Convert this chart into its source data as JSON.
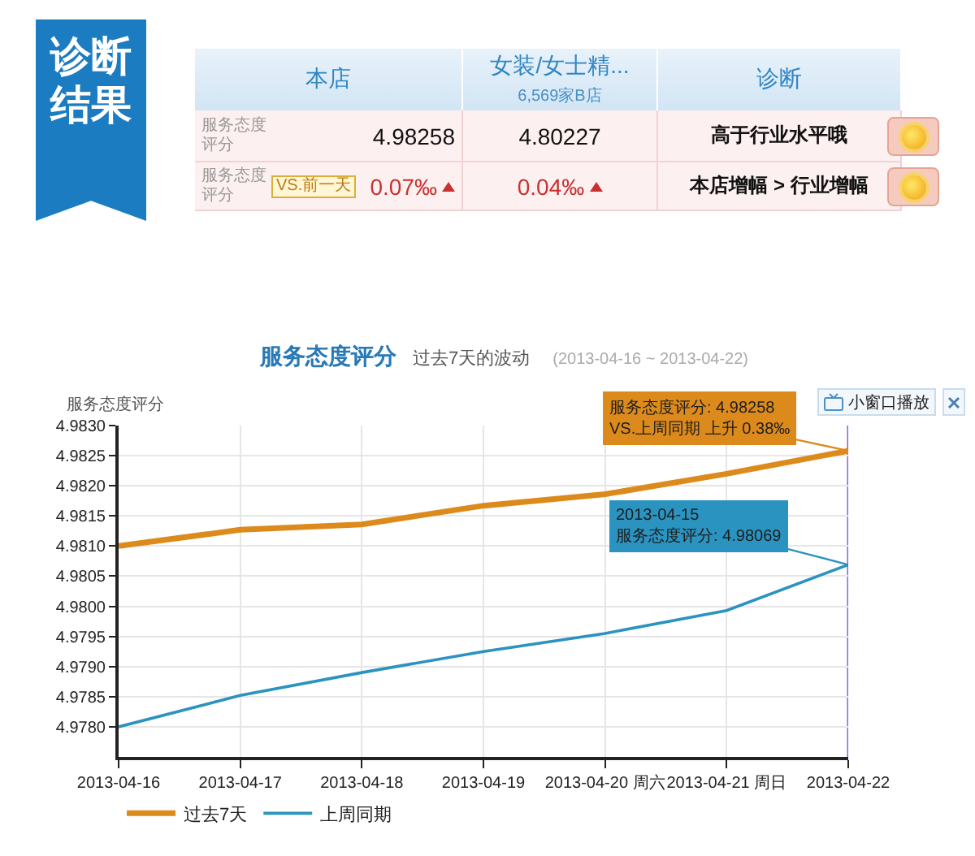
{
  "chart_data": [
    {
      "type": "other",
      "title": "诊断结果",
      "categories": [
        "本店",
        "女装/女士精...",
        "诊断"
      ],
      "y_categories": [
        "服务态度评分",
        "服务态度评分"
      ],
      "cell_labels": [
        [
          "4.98258",
          "4.80227",
          "高于行业水平哦"
        ],
        [
          "0.07‰",
          "0.04‰",
          "本店增幅 > 行业增幅"
        ]
      ],
      "annotations": [
        "6,569家B店",
        "VS.前一天"
      ]
    },
    {
      "type": "line",
      "title": "服务态度评分",
      "subtitle": "过去7天的波动",
      "ylabel": "服务态度评分",
      "annotations": [
        "(2013-04-16 ~ 2013-04-22)",
        "小窗口播放",
        {
          "text": "服务态度评分: 4.98258\nVS.上周同期 上升 0.38‰",
          "x": "2013-04-22",
          "y": 4.98258
        },
        {
          "text": "2013-04-15\n服务态度评分: 4.98069",
          "x": "2013-04-22",
          "y": 4.98069
        }
      ],
      "categories": [
        "2013-04-16",
        "2013-04-17",
        "2013-04-18",
        "2013-04-19",
        "2013-04-20 周六",
        "2013-04-21 周日",
        "2013-04-22"
      ],
      "series": [
        {
          "name": "过去7天",
          "color": "#dd8a1c",
          "values": [
            4.981,
            4.98127,
            4.98136,
            4.98167,
            4.98186,
            4.9822,
            4.98258
          ]
        },
        {
          "name": "上周同期",
          "color": "#2a93bf",
          "values": [
            4.978,
            4.97852,
            4.9789,
            4.97925,
            4.97955,
            4.97993,
            4.98069
          ]
        }
      ],
      "ylim": [
        4.9775,
        4.983
      ],
      "yticks": [
        {
          "value": 4.978,
          "label": "4.9780"
        },
        4.9785,
        {
          "value": 4.979,
          "label": "4.9790"
        },
        4.9795,
        {
          "value": 4.98,
          "label": "4.9800"
        },
        4.9805,
        {
          "value": 4.981,
          "label": "4.9810"
        },
        4.9815,
        {
          "value": 4.982,
          "label": "4.9820"
        },
        4.9825,
        {
          "value": 4.983,
          "label": "4.9830"
        }
      ],
      "grid": true,
      "legend": "bottom left",
      "marker": "none",
      "line_style": "solid",
      "ref_lines": [
        {
          "axis": "x",
          "value": "2013-04-22",
          "color": "#9060e0"
        }
      ]
    }
  ]
}
